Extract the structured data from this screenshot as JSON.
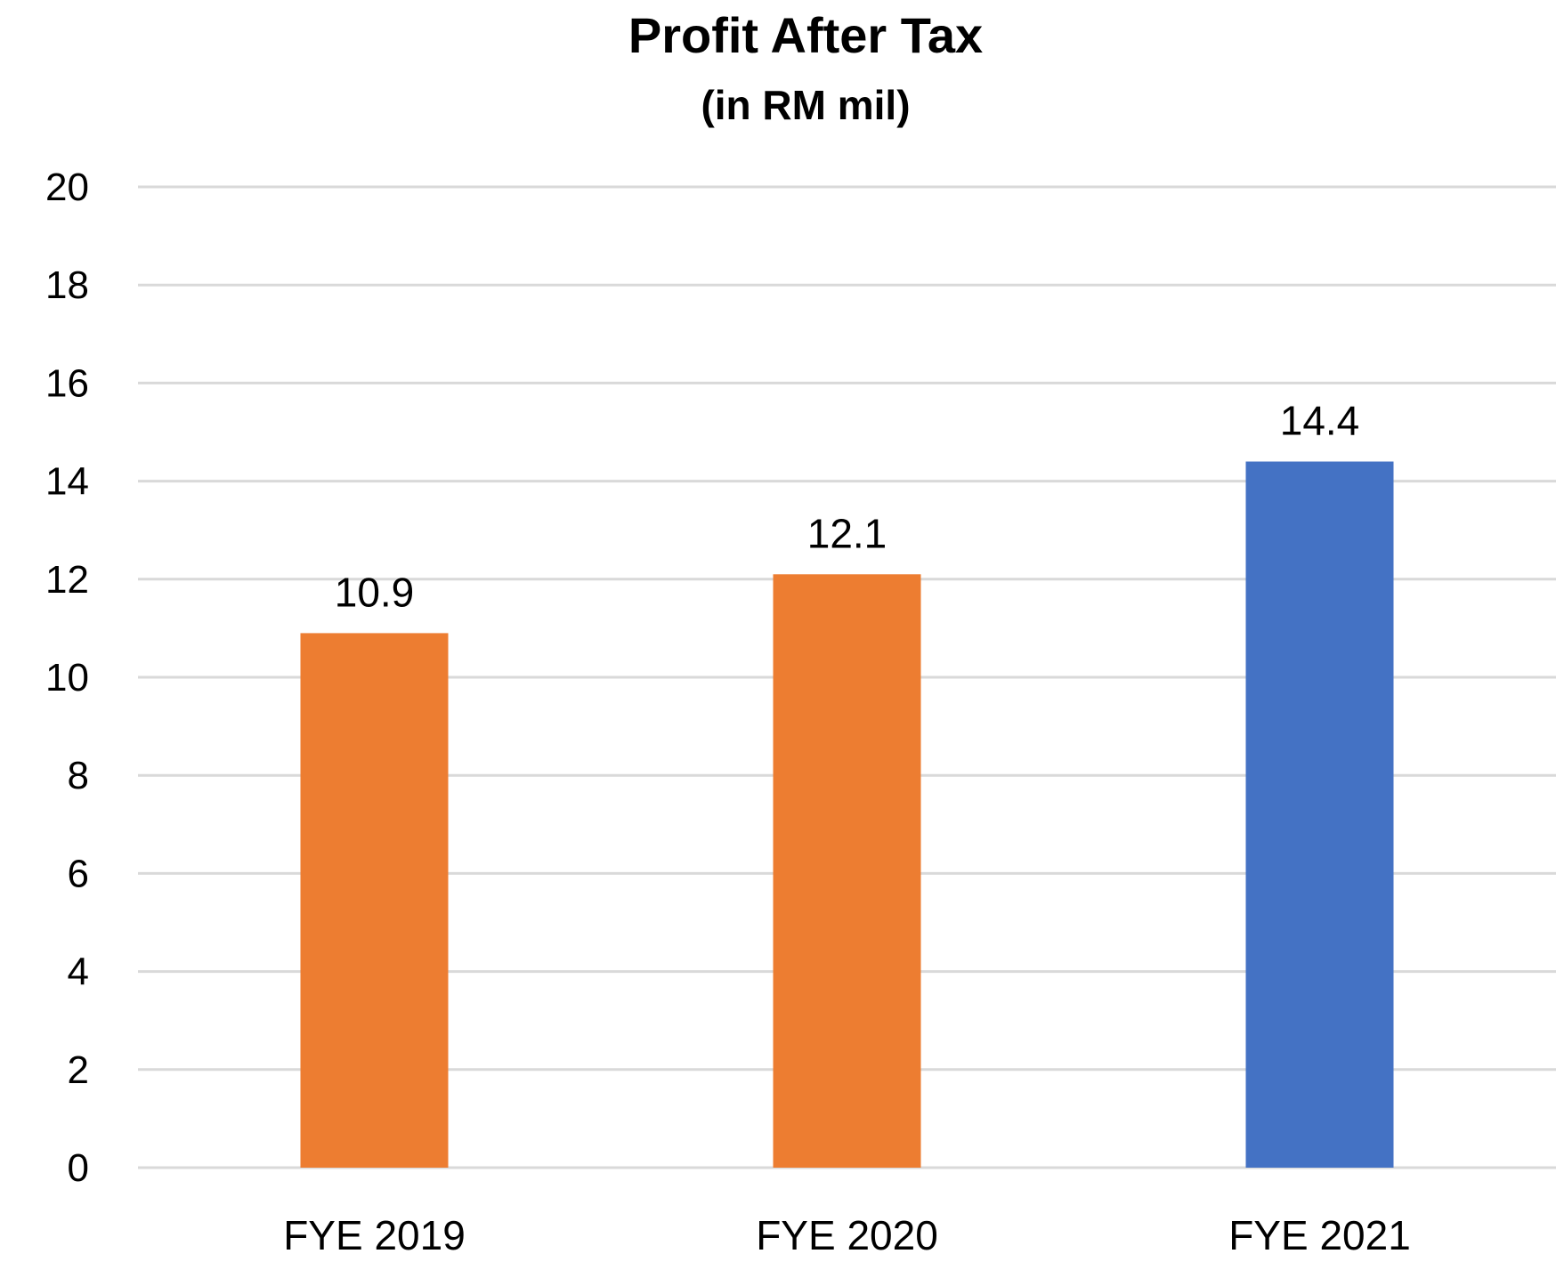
{
  "chart_data": {
    "type": "bar",
    "title": "Profit After Tax",
    "subtitle": "(in RM mil)",
    "categories": [
      "FYE 2019",
      "FYE 2020",
      "FYE 2021"
    ],
    "values": [
      10.9,
      12.1,
      14.4
    ],
    "data_labels": [
      "10.9",
      "12.1",
      "14.4"
    ],
    "bar_colors": [
      "#ED7D31",
      "#ED7D31",
      "#4472C4"
    ],
    "ylim": [
      0,
      20
    ],
    "yticks": [
      0,
      2,
      4,
      6,
      8,
      10,
      12,
      14,
      16,
      18,
      20
    ],
    "xlabel": "",
    "ylabel": "",
    "grid": true,
    "grid_color": "#D9D9D9"
  }
}
